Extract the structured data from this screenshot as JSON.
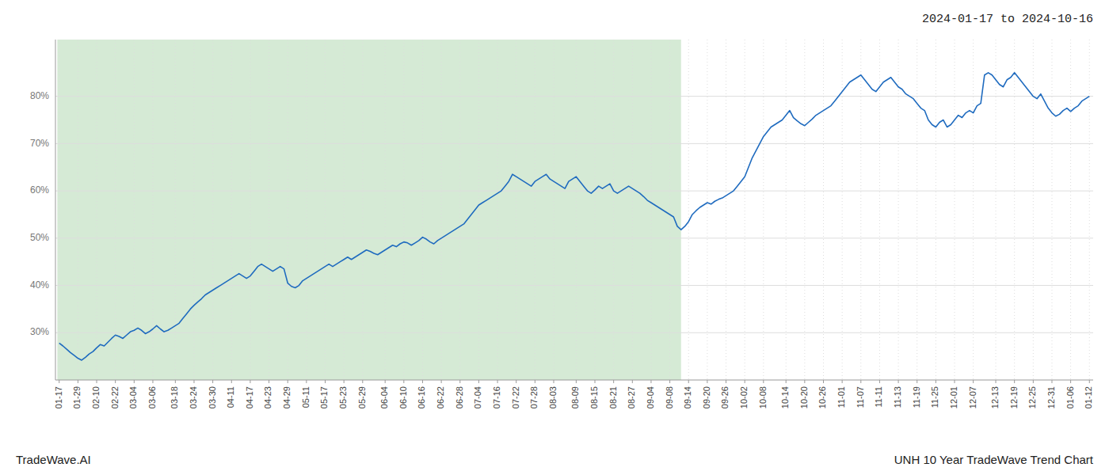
{
  "chart_data": {
    "type": "line",
    "title": "2024-01-17 to 2024-10-16",
    "annotations": [
      "TradeWave.AI",
      "UNH 10 Year TradeWave Trend Chart"
    ],
    "color": "#1f6bbf",
    "grid": true,
    "ylim": [
      20,
      92
    ],
    "yticks": [
      {
        "value": 30,
        "label": "30%"
      },
      {
        "value": 40,
        "label": "40%"
      },
      {
        "value": 50,
        "label": "50%"
      },
      {
        "value": 60,
        "label": "60%"
      },
      {
        "value": 70,
        "label": "70%"
      },
      {
        "value": 80,
        "label": "80%"
      }
    ],
    "shaded_x_range": [
      -0.5,
      166
    ],
    "shaded_color": "#d5ead5",
    "categories": [
      "01-17",
      null,
      null,
      null,
      null,
      "01-29",
      null,
      null,
      null,
      null,
      "02-10",
      null,
      null,
      null,
      null,
      "02-22",
      null,
      null,
      null,
      null,
      "03-04",
      null,
      null,
      null,
      null,
      "03-06",
      null,
      null,
      null,
      null,
      null,
      "03-18",
      null,
      null,
      null,
      null,
      "03-24",
      null,
      null,
      null,
      null,
      "03-30",
      null,
      null,
      null,
      null,
      "04-11",
      null,
      null,
      null,
      null,
      "04-17",
      null,
      null,
      null,
      null,
      "04-23",
      null,
      null,
      null,
      null,
      "04-29",
      null,
      null,
      null,
      null,
      "05-11",
      null,
      null,
      null,
      null,
      "05-17",
      null,
      null,
      null,
      null,
      "05-23",
      null,
      null,
      null,
      null,
      "05-29",
      null,
      null,
      null,
      null,
      null,
      "06-04",
      null,
      null,
      null,
      null,
      "06-10",
      null,
      null,
      null,
      null,
      "06-16",
      null,
      null,
      null,
      null,
      "06-22",
      null,
      null,
      null,
      null,
      "06-28",
      null,
      null,
      null,
      null,
      "07-04",
      null,
      null,
      null,
      null,
      "07-16",
      null,
      null,
      null,
      null,
      "07-22",
      null,
      null,
      null,
      null,
      "07-28",
      null,
      null,
      null,
      null,
      "08-03",
      null,
      null,
      null,
      null,
      null,
      "08-09",
      null,
      null,
      null,
      null,
      "08-15",
      null,
      null,
      null,
      null,
      "08-21",
      null,
      null,
      null,
      null,
      "08-27",
      null,
      null,
      null,
      null,
      "09-04",
      null,
      null,
      null,
      null,
      "09-08",
      null,
      null,
      null,
      null,
      "09-14",
      null,
      null,
      null,
      null,
      "09-20",
      null,
      null,
      null,
      null,
      "09-26",
      null,
      null,
      null,
      null,
      "10-02",
      null,
      null,
      null,
      null,
      "10-08",
      null,
      null,
      null,
      null,
      null,
      "10-14",
      null,
      null,
      null,
      null,
      "10-20",
      null,
      null,
      null,
      null,
      "10-26",
      null,
      null,
      null,
      null,
      "11-01",
      null,
      null,
      null,
      null,
      "11-07",
      null,
      null,
      null,
      null,
      "11-11",
      null,
      null,
      null,
      null,
      "11-13",
      null,
      null,
      null,
      null,
      "11-19",
      null,
      null,
      null,
      null,
      "11-25",
      null,
      null,
      null,
      null,
      "12-01",
      null,
      null,
      null,
      null,
      "12-07",
      null,
      null,
      null,
      null,
      null,
      "12-13",
      null,
      null,
      null,
      null,
      "12-19",
      null,
      null,
      null,
      null,
      "12-25",
      null,
      null,
      null,
      null,
      "12-31",
      null,
      null,
      null,
      null,
      "01-06",
      null,
      null,
      null,
      null,
      "01-12"
    ],
    "values": [
      27.8,
      27.2,
      26.5,
      25.8,
      25.2,
      24.6,
      24.2,
      24.8,
      25.5,
      26.0,
      26.8,
      27.5,
      27.2,
      28.0,
      28.8,
      29.5,
      29.2,
      28.8,
      29.5,
      30.2,
      30.5,
      31.0,
      30.5,
      29.8,
      30.2,
      30.8,
      31.5,
      30.8,
      30.2,
      30.5,
      31.0,
      31.5,
      32.0,
      33.0,
      34.0,
      35.0,
      35.8,
      36.5,
      37.2,
      38.0,
      38.5,
      39.0,
      39.5,
      40.0,
      40.5,
      41.0,
      41.5,
      42.0,
      42.5,
      42.0,
      41.5,
      42.0,
      43.0,
      44.0,
      44.5,
      44.0,
      43.5,
      43.0,
      43.5,
      44.0,
      43.5,
      40.5,
      39.8,
      39.5,
      40.0,
      41.0,
      41.5,
      42.0,
      42.5,
      43.0,
      43.5,
      44.0,
      44.5,
      44.0,
      44.5,
      45.0,
      45.5,
      46.0,
      45.5,
      46.0,
      46.5,
      47.0,
      47.5,
      47.2,
      46.8,
      46.5,
      47.0,
      47.5,
      48.0,
      48.5,
      48.2,
      48.8,
      49.2,
      49.0,
      48.5,
      49.0,
      49.5,
      50.2,
      49.8,
      49.2,
      48.8,
      49.5,
      50.0,
      50.5,
      51.0,
      51.5,
      52.0,
      52.5,
      53.0,
      54.0,
      55.0,
      56.0,
      57.0,
      57.5,
      58.0,
      58.5,
      59.0,
      59.5,
      60.0,
      61.0,
      62.0,
      63.5,
      63.0,
      62.5,
      62.0,
      61.5,
      61.0,
      62.0,
      62.5,
      63.0,
      63.5,
      62.5,
      62.0,
      61.5,
      61.0,
      60.5,
      62.0,
      62.5,
      63.0,
      62.0,
      61.0,
      60.0,
      59.5,
      60.2,
      61.0,
      60.5,
      61.0,
      61.5,
      60.0,
      59.5,
      60.0,
      60.5,
      61.0,
      60.5,
      60.0,
      59.5,
      58.8,
      58.0,
      57.5,
      57.0,
      56.5,
      56.0,
      55.5,
      55.0,
      54.5,
      52.5,
      51.8,
      52.5,
      53.5,
      55.0,
      55.8,
      56.5,
      57.0,
      57.5,
      57.2,
      57.8,
      58.2,
      58.5,
      59.0,
      59.5,
      60.0,
      61.0,
      62.0,
      63.0,
      65.0,
      67.0,
      68.5,
      70.0,
      71.5,
      72.5,
      73.5,
      74.0,
      74.5,
      75.0,
      76.0,
      77.0,
      75.5,
      74.8,
      74.2,
      73.8,
      74.5,
      75.2,
      76.0,
      76.5,
      77.0,
      77.5,
      78.0,
      79.0,
      80.0,
      81.0,
      82.0,
      83.0,
      83.5,
      84.0,
      84.5,
      83.5,
      82.5,
      81.5,
      81.0,
      82.0,
      83.0,
      83.5,
      84.0,
      83.0,
      82.0,
      81.5,
      80.5,
      80.0,
      79.5,
      78.5,
      77.5,
      77.0,
      75.0,
      74.0,
      73.5,
      74.5,
      75.0,
      73.5,
      74.0,
      75.0,
      76.0,
      75.5,
      76.5,
      77.0,
      76.5,
      78.0,
      78.5,
      84.5,
      85.0,
      84.5,
      83.5,
      82.5,
      82.0,
      83.5,
      84.0,
      85.0,
      84.0,
      83.0,
      82.0,
      81.0,
      80.0,
      79.5,
      80.5,
      79.0,
      77.5,
      76.5,
      75.8,
      76.2,
      77.0,
      77.5,
      76.8,
      77.5,
      78.0,
      79.0,
      79.5,
      80.0
    ]
  }
}
